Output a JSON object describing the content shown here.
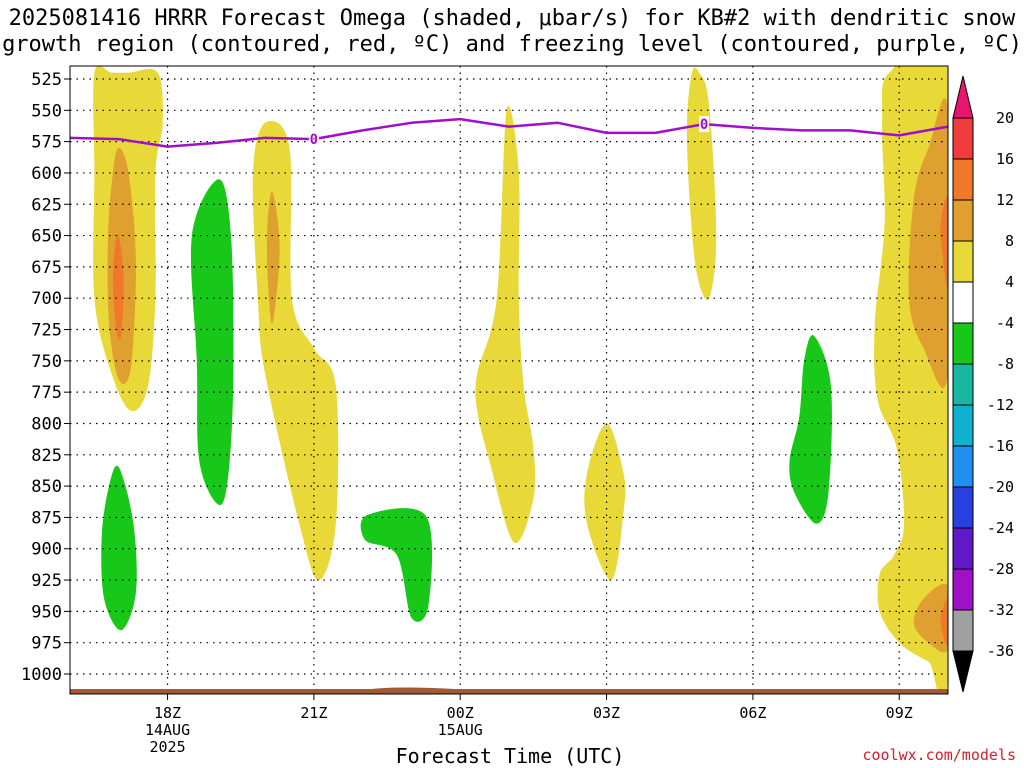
{
  "title": {
    "line1": "2025081416 HRRR Forecast Omega (shaded, μbar/s) for KB#2 with dendritic snow",
    "line2": "growth region (contoured, red, ºC) and freezing level (contoured, purple, ºC)"
  },
  "credit": "coolwx.com/models",
  "chart_data": {
    "type": "contour",
    "title": "2025081416 HRRR Forecast Omega (shaded, μbar/s) for KB#2 with dendritic snow growth region (contoured, red, ºC) and freezing level (contoured, purple, ºC)",
    "xlabel": "Forecast Time (UTC)",
    "ylabel": "",
    "x_unit": "hours from 2025-08-14 16Z",
    "xlim": [
      0,
      18
    ],
    "ylim": [
      1010,
      520
    ],
    "y_ticks": [
      525,
      550,
      575,
      600,
      625,
      650,
      675,
      700,
      725,
      750,
      775,
      800,
      825,
      850,
      875,
      900,
      925,
      950,
      975,
      1000
    ],
    "x_ticks": [
      {
        "hour": 2,
        "label": "18Z",
        "sub1": "14AUG",
        "sub2": "2025"
      },
      {
        "hour": 5,
        "label": "21Z",
        "sub1": "",
        "sub2": ""
      },
      {
        "hour": 8,
        "label": "00Z",
        "sub1": "15AUG",
        "sub2": ""
      },
      {
        "hour": 11,
        "label": "03Z",
        "sub1": "",
        "sub2": ""
      },
      {
        "hour": 14,
        "label": "06Z",
        "sub1": "",
        "sub2": ""
      },
      {
        "hour": 17,
        "label": "09Z",
        "sub1": "",
        "sub2": ""
      }
    ],
    "grid": true,
    "colorbar": {
      "levels": [
        "20",
        "16",
        "12",
        "8",
        "4",
        "-4",
        "-8",
        "-12",
        "-16",
        "-20",
        "-24",
        "-28",
        "-32",
        "-36"
      ],
      "colors": [
        "#e8146e",
        "#f03c3c",
        "#f07828",
        "#e0a030",
        "#e8d838",
        "#ffffff",
        "#18c818",
        "#18b8a0",
        "#10b0d0",
        "#2090f0",
        "#2840e0",
        "#6018c8",
        "#a010c8",
        "#a0a0a0",
        "#000000"
      ]
    },
    "freezing_level": {
      "color": "#a010c8",
      "label": "0",
      "points": [
        [
          0,
          572
        ],
        [
          1,
          573
        ],
        [
          2,
          579
        ],
        [
          3,
          576
        ],
        [
          4,
          572
        ],
        [
          5,
          573
        ],
        [
          6,
          566
        ],
        [
          7,
          560
        ],
        [
          8,
          557
        ],
        [
          9,
          563
        ],
        [
          10,
          560
        ],
        [
          11,
          568
        ],
        [
          12,
          568
        ],
        [
          13,
          561
        ],
        [
          14,
          564
        ],
        [
          15,
          566
        ],
        [
          16,
          566
        ],
        [
          17,
          570
        ],
        [
          18,
          563
        ]
      ]
    },
    "terrain": {
      "color": "#a05a32",
      "pressure": 1012
    },
    "omega_regions": [
      {
        "value": 6,
        "points": [
          [
            0.5,
            520
          ],
          [
            0.85,
            520
          ],
          [
            1.2,
            520
          ],
          [
            1.8,
            520
          ],
          [
            1.9,
            560
          ],
          [
            1.75,
            600
          ],
          [
            1.75,
            700
          ],
          [
            1.6,
            770
          ],
          [
            1.25,
            790
          ],
          [
            0.85,
            760
          ],
          [
            0.5,
            700
          ],
          [
            0.5,
            600
          ]
        ]
      },
      {
        "value": 10,
        "points": [
          [
            1.0,
            580
          ],
          [
            1.2,
            600
          ],
          [
            1.35,
            670
          ],
          [
            1.25,
            755
          ],
          [
            1.0,
            765
          ],
          [
            0.8,
            720
          ],
          [
            0.78,
            650
          ],
          [
            0.88,
            600
          ]
        ]
      },
      {
        "value": 14,
        "points": [
          [
            1.0,
            650
          ],
          [
            1.1,
            685
          ],
          [
            1.05,
            730
          ],
          [
            0.95,
            725
          ],
          [
            0.88,
            690
          ],
          [
            0.92,
            660
          ]
        ]
      },
      {
        "value": -6,
        "points": [
          [
            1.0,
            835
          ],
          [
            1.3,
            880
          ],
          [
            1.35,
            935
          ],
          [
            1.05,
            965
          ],
          [
            0.7,
            940
          ],
          [
            0.65,
            890
          ],
          [
            0.8,
            850
          ]
        ]
      },
      {
        "value": -6,
        "points": [
          [
            3.05,
            605
          ],
          [
            3.3,
            650
          ],
          [
            3.35,
            760
          ],
          [
            3.25,
            840
          ],
          [
            3.05,
            865
          ],
          [
            2.65,
            830
          ],
          [
            2.6,
            750
          ],
          [
            2.5,
            650
          ]
        ]
      },
      {
        "value": 6,
        "points": [
          [
            4.0,
            560
          ],
          [
            4.5,
            580
          ],
          [
            4.55,
            700
          ],
          [
            5.0,
            740
          ],
          [
            5.45,
            770
          ],
          [
            5.45,
            880
          ],
          [
            5.1,
            925
          ],
          [
            4.7,
            880
          ],
          [
            4.0,
            760
          ],
          [
            3.85,
            700
          ],
          [
            3.75,
            600
          ]
        ]
      },
      {
        "value": 10,
        "points": [
          [
            4.15,
            615
          ],
          [
            4.3,
            660
          ],
          [
            4.15,
            720
          ],
          [
            4.05,
            680
          ],
          [
            4.05,
            640
          ]
        ]
      },
      {
        "value": -6,
        "points": [
          [
            6.1,
            873
          ],
          [
            7.3,
            874
          ],
          [
            7.35,
            945
          ],
          [
            7.0,
            955
          ],
          [
            6.7,
            905
          ],
          [
            6.05,
            893
          ]
        ]
      },
      {
        "value": 6,
        "points": [
          [
            8.95,
            550
          ],
          [
            9.2,
            600
          ],
          [
            9.2,
            700
          ],
          [
            9.3,
            770
          ],
          [
            9.5,
            820
          ],
          [
            9.5,
            860
          ],
          [
            9.1,
            895
          ],
          [
            8.6,
            830
          ],
          [
            8.35,
            790
          ],
          [
            8.35,
            760
          ],
          [
            8.75,
            700
          ]
        ]
      },
      {
        "value": 6,
        "points": [
          [
            11.0,
            800
          ],
          [
            11.35,
            840
          ],
          [
            11.35,
            870
          ],
          [
            11.1,
            925
          ],
          [
            10.6,
            880
          ],
          [
            10.6,
            840
          ]
        ]
      },
      {
        "value": 6,
        "points": [
          [
            12.9,
            520
          ],
          [
            13.1,
            545
          ],
          [
            13.25,
            650
          ],
          [
            13.1,
            700
          ],
          [
            12.85,
            680
          ],
          [
            12.7,
            620
          ],
          [
            12.65,
            560
          ],
          [
            12.75,
            520
          ]
        ]
      },
      {
        "value": -6,
        "points": [
          [
            15.25,
            730
          ],
          [
            15.6,
            770
          ],
          [
            15.55,
            855
          ],
          [
            15.3,
            880
          ],
          [
            14.85,
            855
          ],
          [
            14.75,
            830
          ],
          [
            14.95,
            795
          ],
          [
            15.05,
            750
          ]
        ]
      },
      {
        "value": 6,
        "points": [
          [
            16.8,
            520
          ],
          [
            18.0,
            520
          ],
          [
            18.0,
            995
          ],
          [
            17.6,
            990
          ],
          [
            17.0,
            975
          ],
          [
            16.6,
            950
          ],
          [
            16.6,
            920
          ],
          [
            16.9,
            905
          ],
          [
            17.1,
            880
          ],
          [
            16.95,
            820
          ],
          [
            16.55,
            780
          ],
          [
            16.5,
            720
          ],
          [
            16.7,
            640
          ],
          [
            16.65,
            560
          ]
        ]
      },
      {
        "value": 10,
        "points": [
          [
            18.0,
            550
          ],
          [
            17.6,
            580
          ],
          [
            17.3,
            620
          ],
          [
            17.2,
            700
          ],
          [
            17.5,
            740
          ],
          [
            18.0,
            760
          ]
        ]
      },
      {
        "value": 10,
        "points": [
          [
            18.0,
            930
          ],
          [
            17.5,
            940
          ],
          [
            17.3,
            960
          ],
          [
            17.6,
            975
          ],
          [
            18.0,
            980
          ]
        ]
      },
      {
        "value": 14,
        "points": [
          [
            18.0,
            620
          ],
          [
            17.85,
            640
          ],
          [
            17.9,
            670
          ],
          [
            18.0,
            690
          ]
        ]
      },
      {
        "value": 14,
        "points": [
          [
            18.0,
            940
          ],
          [
            17.85,
            955
          ],
          [
            17.9,
            970
          ],
          [
            18.0,
            975
          ]
        ]
      }
    ]
  }
}
